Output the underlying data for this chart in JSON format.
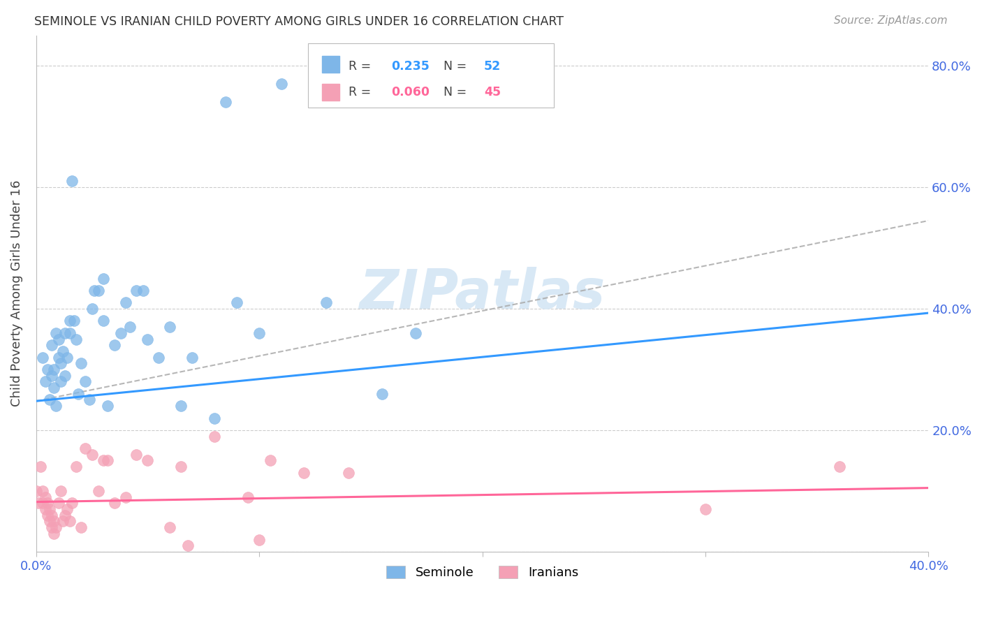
{
  "title": "SEMINOLE VS IRANIAN CHILD POVERTY AMONG GIRLS UNDER 16 CORRELATION CHART",
  "source": "Source: ZipAtlas.com",
  "ylabel": "Child Poverty Among Girls Under 16",
  "xlim": [
    0.0,
    0.4
  ],
  "ylim": [
    0.0,
    0.85
  ],
  "yticks": [
    0.0,
    0.2,
    0.4,
    0.6,
    0.8
  ],
  "ytick_labels": [
    "",
    "20.0%",
    "40.0%",
    "60.0%",
    "80.0%"
  ],
  "xticks": [
    0.0,
    0.1,
    0.2,
    0.3,
    0.4
  ],
  "xtick_labels": [
    "0.0%",
    "",
    "",
    "",
    "40.0%"
  ],
  "seminole_R": 0.235,
  "seminole_N": 52,
  "iranian_R": 0.06,
  "iranian_N": 45,
  "seminole_color": "#7EB6E8",
  "iranian_color": "#F4A0B5",
  "trendline_seminole_color": "#3399FF",
  "trendline_iranian_color": "#FF6699",
  "dashed_line_color": "#AAAAAA",
  "watermark_color": "#D8E8F5",
  "background_color": "#FFFFFF",
  "seminole_x": [
    0.003,
    0.004,
    0.005,
    0.006,
    0.007,
    0.007,
    0.008,
    0.008,
    0.009,
    0.009,
    0.01,
    0.01,
    0.011,
    0.011,
    0.012,
    0.013,
    0.013,
    0.014,
    0.015,
    0.015,
    0.016,
    0.017,
    0.018,
    0.019,
    0.02,
    0.022,
    0.024,
    0.025,
    0.026,
    0.028,
    0.03,
    0.03,
    0.032,
    0.035,
    0.038,
    0.04,
    0.042,
    0.045,
    0.048,
    0.05,
    0.055,
    0.06,
    0.065,
    0.07,
    0.08,
    0.085,
    0.09,
    0.1,
    0.11,
    0.13,
    0.155,
    0.17
  ],
  "seminole_y": [
    0.32,
    0.28,
    0.3,
    0.25,
    0.29,
    0.34,
    0.27,
    0.3,
    0.24,
    0.36,
    0.32,
    0.35,
    0.28,
    0.31,
    0.33,
    0.29,
    0.36,
    0.32,
    0.36,
    0.38,
    0.61,
    0.38,
    0.35,
    0.26,
    0.31,
    0.28,
    0.25,
    0.4,
    0.43,
    0.43,
    0.38,
    0.45,
    0.24,
    0.34,
    0.36,
    0.41,
    0.37,
    0.43,
    0.43,
    0.35,
    0.32,
    0.37,
    0.24,
    0.32,
    0.22,
    0.74,
    0.41,
    0.36,
    0.77,
    0.41,
    0.26,
    0.36
  ],
  "iranian_x": [
    0.0,
    0.001,
    0.002,
    0.003,
    0.003,
    0.004,
    0.004,
    0.005,
    0.005,
    0.006,
    0.006,
    0.007,
    0.007,
    0.008,
    0.008,
    0.009,
    0.01,
    0.011,
    0.012,
    0.013,
    0.014,
    0.015,
    0.016,
    0.018,
    0.02,
    0.022,
    0.025,
    0.028,
    0.03,
    0.032,
    0.035,
    0.04,
    0.045,
    0.05,
    0.06,
    0.065,
    0.068,
    0.08,
    0.095,
    0.1,
    0.105,
    0.12,
    0.14,
    0.3,
    0.36
  ],
  "iranian_y": [
    0.1,
    0.08,
    0.14,
    0.08,
    0.1,
    0.07,
    0.09,
    0.06,
    0.08,
    0.05,
    0.07,
    0.04,
    0.06,
    0.03,
    0.05,
    0.04,
    0.08,
    0.1,
    0.05,
    0.06,
    0.07,
    0.05,
    0.08,
    0.14,
    0.04,
    0.17,
    0.16,
    0.1,
    0.15,
    0.15,
    0.08,
    0.09,
    0.16,
    0.15,
    0.04,
    0.14,
    0.01,
    0.19,
    0.09,
    0.02,
    0.15,
    0.13,
    0.13,
    0.07,
    0.14
  ],
  "seminole_trend_x": [
    0.0,
    0.4
  ],
  "seminole_trend_y": [
    0.248,
    0.393
  ],
  "iranian_trend_x": [
    0.0,
    0.4
  ],
  "iranian_trend_y": [
    0.082,
    0.105
  ],
  "dashed_trend_x": [
    0.0,
    0.4
  ],
  "dashed_trend_y": [
    0.248,
    0.545
  ]
}
